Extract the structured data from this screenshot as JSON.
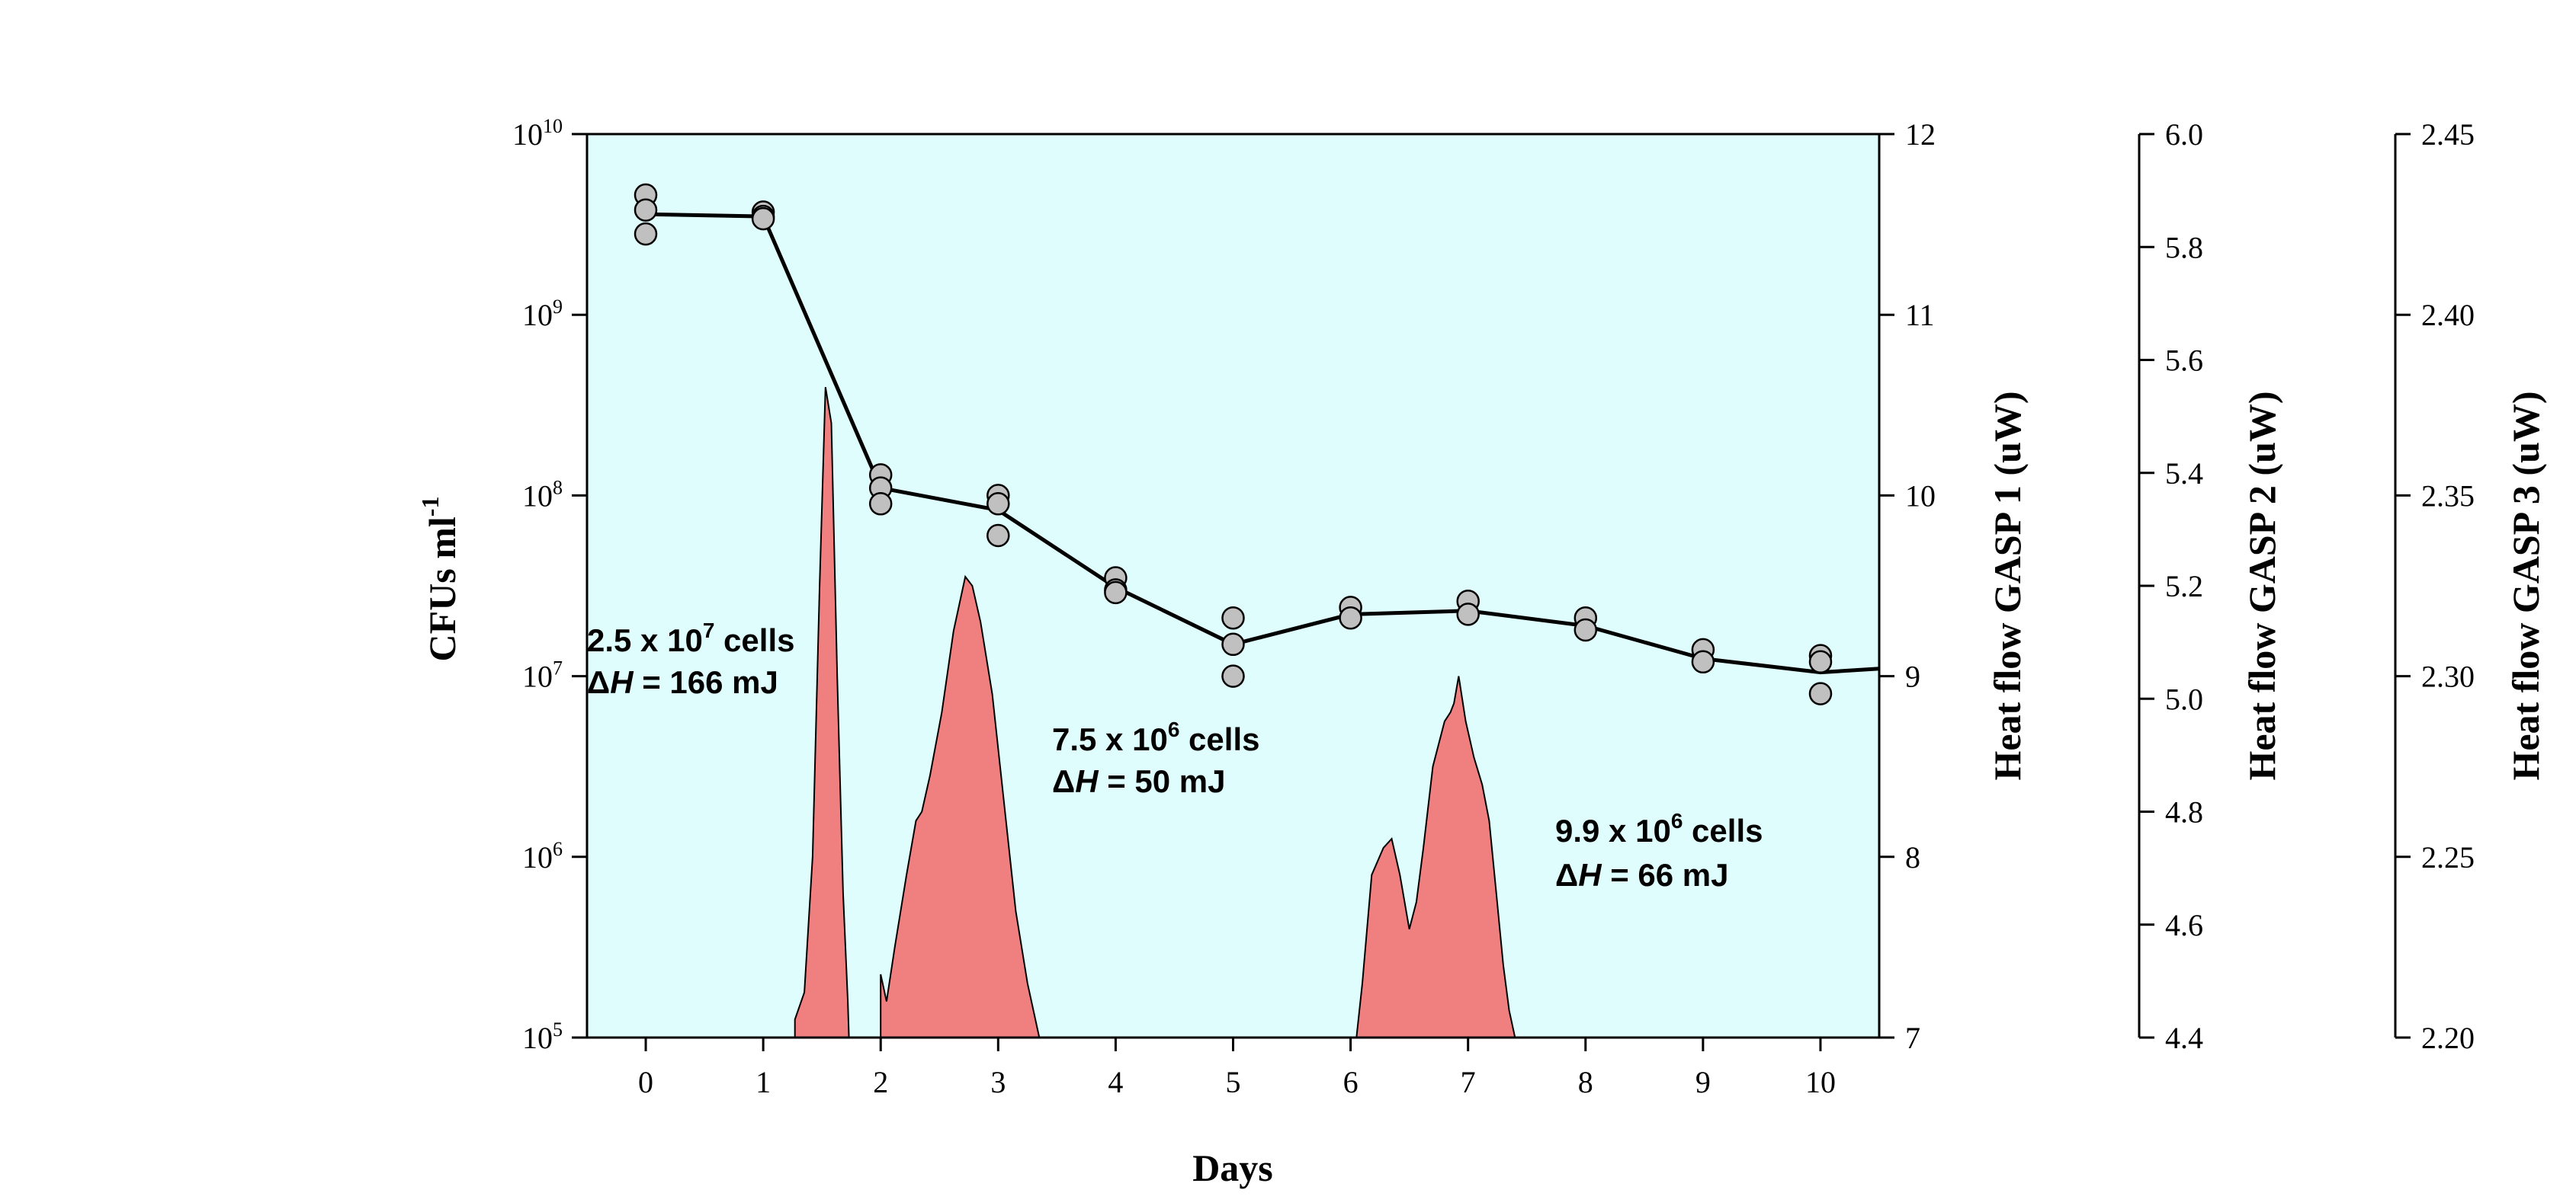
{
  "chart_data": {
    "type": "line",
    "xlabel": "Days",
    "ylabel": "CFUs ml",
    "ylabel_sup": "-1",
    "xlim": [
      -0.5,
      10.5
    ],
    "x_ticks": [
      "0",
      "1",
      "2",
      "3",
      "4",
      "5",
      "6",
      "7",
      "8",
      "9",
      "10"
    ],
    "y_scale": "log",
    "ylim": [
      100000,
      10000000000
    ],
    "y_ticks": [
      {
        "base": "10",
        "exp": "5",
        "value": 100000
      },
      {
        "base": "10",
        "exp": "6",
        "value": 1000000
      },
      {
        "base": "10",
        "exp": "7",
        "value": 10000000
      },
      {
        "base": "10",
        "exp": "8",
        "value": 100000000
      },
      {
        "base": "10",
        "exp": "9",
        "value": 1000000000
      },
      {
        "base": "10",
        "exp": "10",
        "value": 10000000000
      }
    ],
    "background_color": "#e0fdfd",
    "series": [
      {
        "kind": "scatter",
        "color": "#c0c0c0",
        "points": [
          {
            "x": 0,
            "y": 4600000000
          },
          {
            "x": 0,
            "y": 3800000000
          },
          {
            "x": 0,
            "y": 2800000000
          },
          {
            "x": 1,
            "y": 3700000000
          },
          {
            "x": 1,
            "y": 3500000000
          },
          {
            "x": 1,
            "y": 3400000000
          },
          {
            "x": 2,
            "y": 130000000
          },
          {
            "x": 2,
            "y": 110000000
          },
          {
            "x": 2,
            "y": 90000000
          },
          {
            "x": 3,
            "y": 100000000
          },
          {
            "x": 3,
            "y": 90000000
          },
          {
            "x": 3,
            "y": 60000000
          },
          {
            "x": 4,
            "y": 35000000
          },
          {
            "x": 4,
            "y": 30000000
          },
          {
            "x": 4,
            "y": 29000000
          },
          {
            "x": 5,
            "y": 21000000
          },
          {
            "x": 5,
            "y": 15000000
          },
          {
            "x": 5,
            "y": 10000000
          },
          {
            "x": 6,
            "y": 24000000
          },
          {
            "x": 6,
            "y": 21000000
          },
          {
            "x": 7,
            "y": 26000000
          },
          {
            "x": 7,
            "y": 22000000
          },
          {
            "x": 8,
            "y": 21000000
          },
          {
            "x": 8,
            "y": 18000000
          },
          {
            "x": 9,
            "y": 14000000
          },
          {
            "x": 9,
            "y": 12000000
          },
          {
            "x": 10,
            "y": 13000000
          },
          {
            "x": 10,
            "y": 12000000
          },
          {
            "x": 10,
            "y": 8000000
          }
        ]
      },
      {
        "kind": "line",
        "color": "#000000",
        "points": [
          {
            "x": 0,
            "y": 3600000000
          },
          {
            "x": 1,
            "y": 3500000000
          },
          {
            "x": 2,
            "y": 110000000
          },
          {
            "x": 3,
            "y": 83000000
          },
          {
            "x": 4,
            "y": 31000000
          },
          {
            "x": 5,
            "y": 15000000
          },
          {
            "x": 6,
            "y": 22000000
          },
          {
            "x": 7,
            "y": 23000000
          },
          {
            "x": 8,
            "y": 19000000
          },
          {
            "x": 9,
            "y": 12500000
          },
          {
            "x": 10,
            "y": 10500000
          },
          {
            "x": 10.5,
            "y": 11000000
          }
        ]
      }
    ],
    "heat_flow": {
      "kind": "area",
      "color": "#f08080",
      "axis": "Heat flow GASP 1 (uW)",
      "peaks": [
        {
          "name": "GASP 1",
          "points": [
            [
              1.27,
              7.1
            ],
            [
              1.35,
              7.25
            ],
            [
              1.42,
              8.0
            ],
            [
              1.48,
              9.5
            ],
            [
              1.53,
              10.6
            ],
            [
              1.58,
              10.4
            ],
            [
              1.63,
              9.0
            ],
            [
              1.68,
              7.8
            ],
            [
              1.72,
              7.2
            ],
            [
              1.73,
              7.0
            ]
          ]
        },
        {
          "name": "GASP 2",
          "points": [
            [
              2.0,
              7.35
            ],
            [
              2.05,
              7.2
            ],
            [
              2.12,
              7.5
            ],
            [
              2.22,
              7.9
            ],
            [
              2.3,
              8.2
            ],
            [
              2.35,
              8.25
            ],
            [
              2.42,
              8.45
            ],
            [
              2.52,
              8.8
            ],
            [
              2.62,
              9.25
            ],
            [
              2.72,
              9.55
            ],
            [
              2.78,
              9.5
            ],
            [
              2.85,
              9.3
            ],
            [
              2.95,
              8.9
            ],
            [
              3.05,
              8.3
            ],
            [
              3.15,
              7.7
            ],
            [
              3.25,
              7.3
            ],
            [
              3.35,
              7.0
            ]
          ]
        },
        {
          "name": "GASP 3",
          "points": [
            [
              6.05,
              7.0
            ],
            [
              6.1,
              7.3
            ],
            [
              6.18,
              7.9
            ],
            [
              6.28,
              8.05
            ],
            [
              6.35,
              8.1
            ],
            [
              6.42,
              7.9
            ],
            [
              6.5,
              7.6
            ],
            [
              6.56,
              7.75
            ],
            [
              6.62,
              8.05
            ],
            [
              6.7,
              8.5
            ],
            [
              6.8,
              8.75
            ],
            [
              6.85,
              8.8
            ],
            [
              6.88,
              8.85
            ],
            [
              6.92,
              9.0
            ],
            [
              6.98,
              8.75
            ],
            [
              7.05,
              8.55
            ],
            [
              7.12,
              8.4
            ],
            [
              7.18,
              8.2
            ],
            [
              7.24,
              7.8
            ],
            [
              7.3,
              7.4
            ],
            [
              7.35,
              7.15
            ],
            [
              7.4,
              7.0
            ],
            [
              7.45,
              6.95
            ]
          ]
        }
      ]
    },
    "right_axes": [
      {
        "title": "Heat flow GASP 1 (uW)",
        "min": 7,
        "max": 12,
        "ticks": [
          "7",
          "8",
          "9",
          "10",
          "11",
          "12"
        ]
      },
      {
        "title": "Heat flow GASP 2 (uW)",
        "min": 4.4,
        "max": 6.0,
        "ticks": [
          "4.4",
          "4.6",
          "4.8",
          "5.0",
          "5.2",
          "5.4",
          "5.6",
          "5.8",
          "6.0"
        ]
      },
      {
        "title": "Heat flow GASP 3 (uW)",
        "min": 2.2,
        "max": 2.45,
        "ticks": [
          "2.20",
          "2.25",
          "2.30",
          "2.35",
          "2.40",
          "2.45"
        ]
      }
    ],
    "annotations": [
      {
        "line1_pre": "2.5 x 10",
        "line1_sup": "7",
        "line1_post": " cells",
        "delta": "Δ",
        "h": "H",
        "line2_post": " = 166 mJ"
      },
      {
        "line1_pre": "7.5 x 10",
        "line1_sup": "6",
        "line1_post": " cells",
        "delta": "Δ",
        "h": "H",
        "line2_post": " = 50 mJ"
      },
      {
        "line1_pre": "9.9 x 10",
        "line1_sup": "6",
        "line1_post": " cells",
        "delta": "Δ",
        "h": "H",
        "line2_post": " = 66 mJ"
      }
    ]
  }
}
